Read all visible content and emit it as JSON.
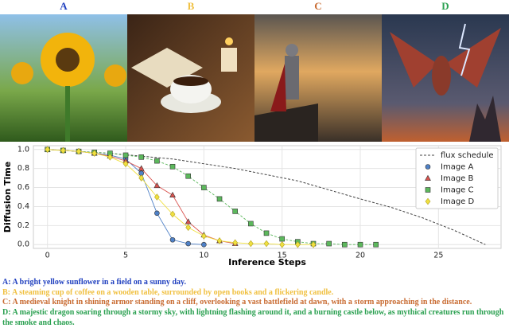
{
  "panels": [
    "A",
    "B",
    "C",
    "D"
  ],
  "captions": [
    "A: A bright yellow sunflower in a field on a sunny day.",
    "B: A steaming cup of coffee on a wooden table, surrounded by open books and a flickering candle.",
    "C: A medieval knight in shining armor standing on a cliff, overlooking a vast battlefield at dawn, with a storm approaching in the distance.",
    "D: A majestic dragon soaring through a stormy sky, with lightning flashing around it, and a burning castle below, as mythical creatures run through the smoke and chaos."
  ],
  "chart_data": {
    "type": "line",
    "x_label": "Inference Steps",
    "y_label": "Diffusion Time",
    "xlim": [
      -0.9,
      29.0
    ],
    "ylim": [
      -0.04,
      1.04
    ],
    "xticks": [
      0,
      5,
      10,
      15,
      20,
      25
    ],
    "yticks": [
      {
        "value": 0,
        "label": "0.0"
      },
      0.2,
      0.4,
      0.6,
      0.8,
      {
        "value": 1,
        "label": "1.0"
      }
    ],
    "grid": true,
    "legend": "upper right",
    "series": [
      {
        "name": "flux schedule",
        "color": "#444444",
        "linestyle": "dashed",
        "marker": "none",
        "x": [
          0,
          4,
          8,
          12,
          16,
          20,
          22,
          24,
          26,
          28
        ],
        "values": [
          1.0,
          0.96,
          0.9,
          0.8,
          0.67,
          0.48,
          0.39,
          0.28,
          0.15,
          0.0
        ]
      },
      {
        "name": "Image A",
        "color": "#4f81c7",
        "linestyle": "solid",
        "marker": "circle",
        "x": [
          0,
          1,
          2,
          3,
          4,
          5,
          6,
          7,
          8,
          9,
          10
        ],
        "values": [
          1.0,
          0.99,
          0.98,
          0.96,
          0.94,
          0.9,
          0.75,
          0.33,
          0.05,
          0.01,
          0.0
        ]
      },
      {
        "name": "Image B",
        "color": "#d9534f",
        "linestyle": "solid",
        "marker": "triangle",
        "x": [
          0,
          1,
          2,
          3,
          4,
          5,
          6,
          7,
          8,
          9,
          10,
          11,
          12
        ],
        "values": [
          1.0,
          0.99,
          0.98,
          0.96,
          0.93,
          0.88,
          0.8,
          0.62,
          0.52,
          0.24,
          0.1,
          0.04,
          0.01
        ]
      },
      {
        "name": "Image C",
        "color": "#5cb85c",
        "linestyle": "dashed",
        "marker": "square",
        "x": [
          0,
          1,
          2,
          3,
          4,
          5,
          6,
          7,
          8,
          9,
          10,
          11,
          12,
          13,
          14,
          15,
          16,
          17,
          18,
          19,
          20,
          21
        ],
        "values": [
          1.0,
          0.99,
          0.98,
          0.97,
          0.96,
          0.94,
          0.92,
          0.88,
          0.82,
          0.72,
          0.6,
          0.48,
          0.35,
          0.22,
          0.12,
          0.06,
          0.03,
          0.01,
          0.01,
          0.0,
          0.0,
          0.0
        ]
      },
      {
        "name": "Image D",
        "color": "#f0e040",
        "linestyle": "solid",
        "marker": "diamond",
        "x": [
          0,
          1,
          2,
          3,
          4,
          5,
          6,
          7,
          8,
          9,
          10,
          11,
          12,
          13,
          14,
          15,
          16,
          17
        ],
        "values": [
          1.0,
          0.99,
          0.98,
          0.96,
          0.92,
          0.85,
          0.7,
          0.5,
          0.32,
          0.18,
          0.09,
          0.04,
          0.02,
          0.01,
          0.01,
          0.0,
          0.0,
          0.0
        ]
      }
    ]
  }
}
